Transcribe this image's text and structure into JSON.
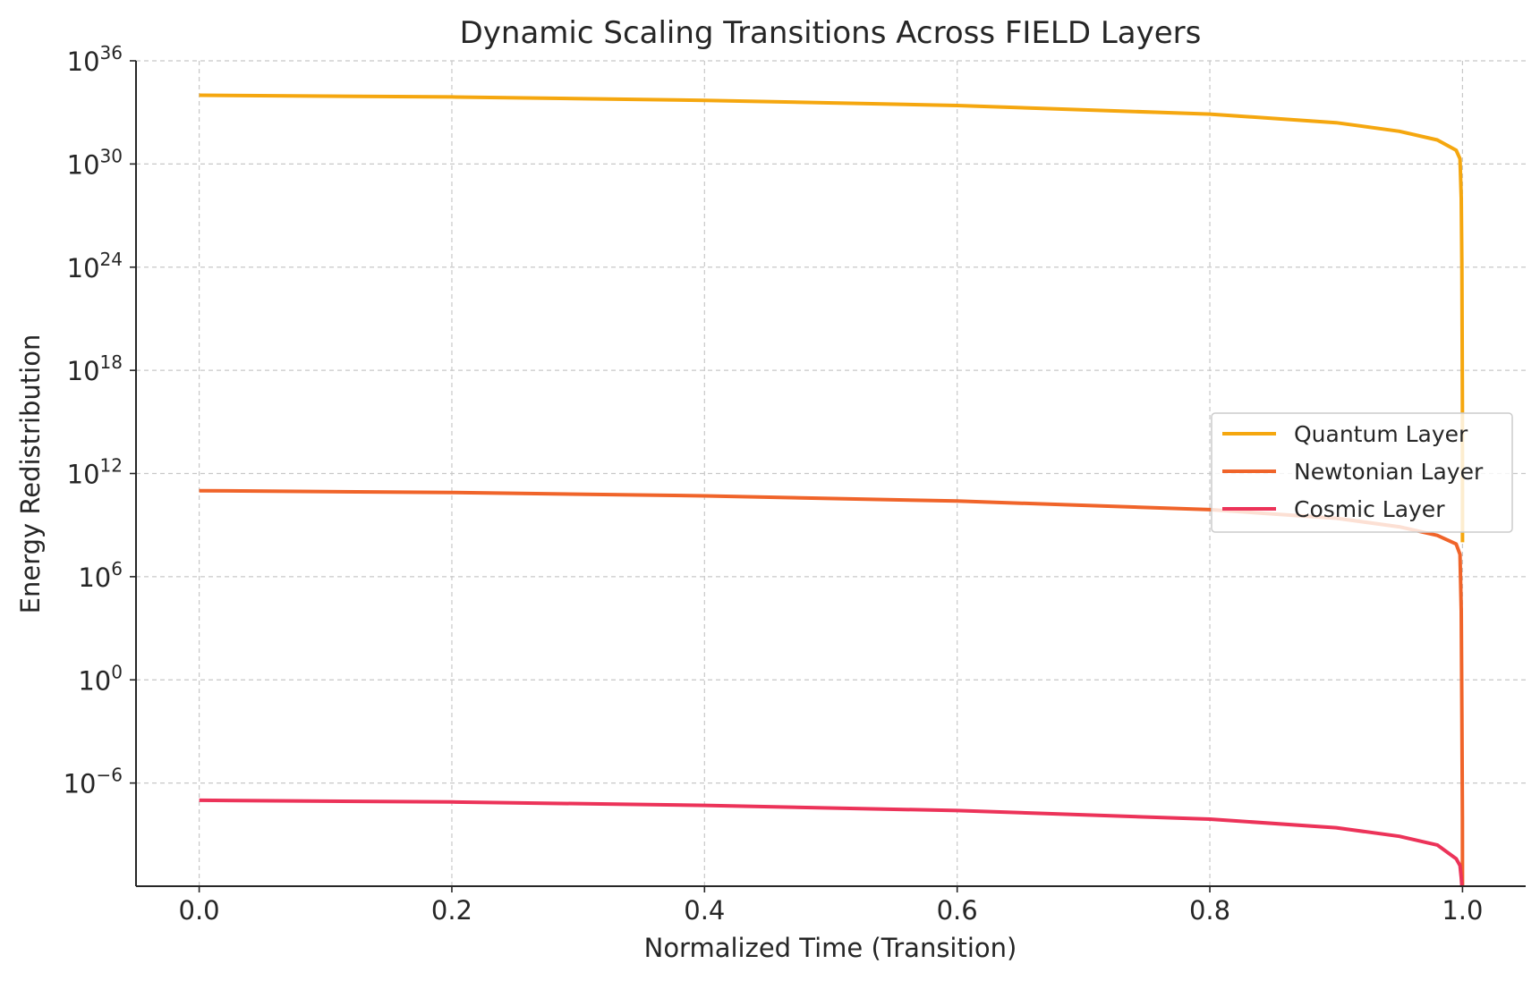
{
  "chart_data": {
    "type": "line",
    "title": "Dynamic Scaling Transitions Across FIELD Layers",
    "xlabel": "Normalized Time (Transition)",
    "ylabel": "Energy Redistribution",
    "xlim": [
      -0.05,
      1.05
    ],
    "ylim_exponent": [
      -12,
      36
    ],
    "yscale": "log",
    "grid": true,
    "legend_position": "center-right",
    "x_ticks": [
      "0.0",
      "0.2",
      "0.4",
      "0.6",
      "0.8",
      "1.0"
    ],
    "y_ticks": [
      {
        "value": 36,
        "base": "10",
        "exp": "36"
      },
      {
        "value": 30,
        "base": "10",
        "exp": "30"
      },
      {
        "value": 24,
        "base": "10",
        "exp": "24"
      },
      {
        "value": 18,
        "base": "10",
        "exp": "18"
      },
      {
        "value": 12,
        "base": "10",
        "exp": "12"
      },
      {
        "value": 6,
        "base": "10",
        "exp": "6"
      },
      {
        "value": 0,
        "base": "10",
        "exp": "0"
      },
      {
        "value": -6,
        "base": "10",
        "exp": "−6"
      }
    ],
    "series": [
      {
        "name": "Quantum Layer",
        "color": "#f5a70f",
        "x": [
          0.0,
          0.2,
          0.4,
          0.6,
          0.8,
          0.9,
          0.95,
          0.98,
          0.995,
          0.998,
          0.999,
          0.9995,
          0.9999,
          1.0
        ],
        "y_log10": [
          34.0,
          33.9,
          33.7,
          33.4,
          32.9,
          32.4,
          31.9,
          31.4,
          30.8,
          30.3,
          28.0,
          24.0,
          16.0,
          8.0
        ]
      },
      {
        "name": "Newtonian Layer",
        "color": "#f0642a",
        "x": [
          0.0,
          0.2,
          0.4,
          0.6,
          0.8,
          0.9,
          0.95,
          0.98,
          0.995,
          0.998,
          0.999,
          0.9995,
          0.9999,
          1.0
        ],
        "y_log10": [
          11.0,
          10.9,
          10.7,
          10.4,
          9.9,
          9.4,
          8.9,
          8.4,
          7.9,
          7.3,
          4.0,
          -2.0,
          -8.0,
          -12.0
        ]
      },
      {
        "name": "Cosmic Layer",
        "color": "#ec3359",
        "x": [
          0.0,
          0.2,
          0.4,
          0.6,
          0.8,
          0.9,
          0.95,
          0.98,
          0.995,
          0.998,
          0.999,
          0.9995,
          1.0
        ],
        "y_log10": [
          -7.0,
          -7.1,
          -7.3,
          -7.6,
          -8.1,
          -8.6,
          -9.1,
          -9.6,
          -10.4,
          -10.8,
          -11.5,
          -12.0,
          -12.0
        ]
      }
    ]
  }
}
